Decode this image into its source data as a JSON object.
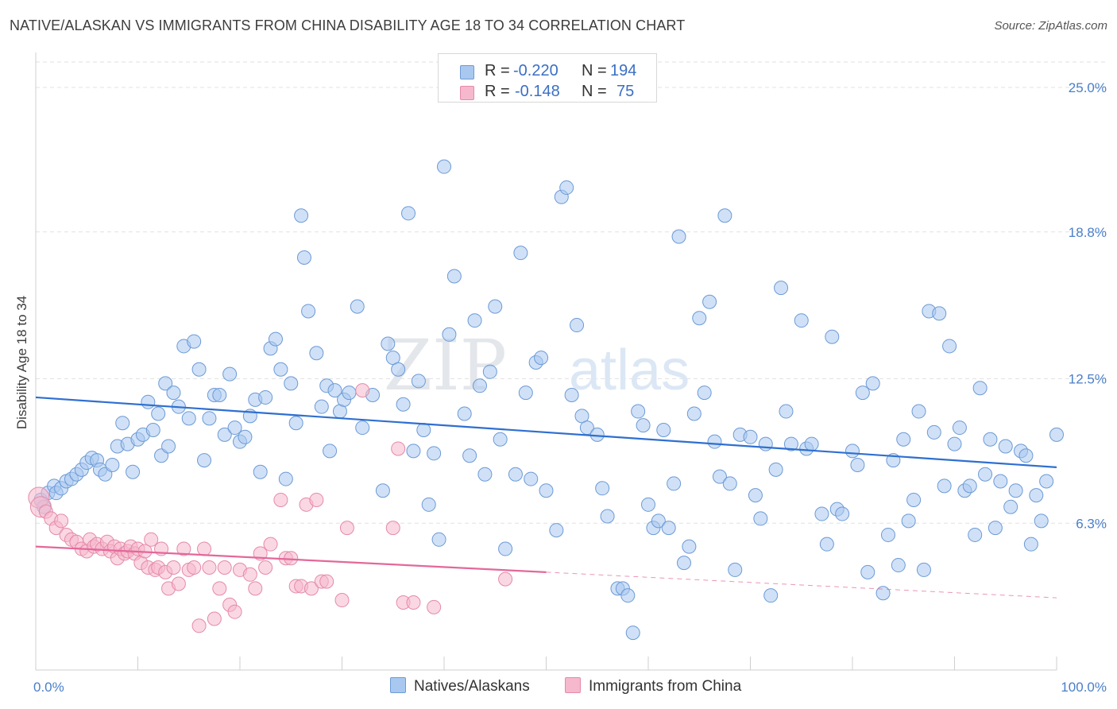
{
  "header": {
    "title": "NATIVE/ALASKAN VS IMMIGRANTS FROM CHINA DISABILITY AGE 18 TO 34 CORRELATION CHART",
    "source": "Source: ZipAtlas.com"
  },
  "watermark": {
    "part1": "ZIP",
    "part2": "atlas"
  },
  "legend": {
    "rows": [
      {
        "r_label": "R =",
        "r_value": "-0.220",
        "n_label": "N =",
        "n_value": "194"
      },
      {
        "r_label": "R =",
        "r_value": "-0.148",
        "n_label": "N =",
        "n_value": "75"
      }
    ]
  },
  "bottom_legend": {
    "natives": "Natives/Alaskans",
    "china": "Immigrants from China"
  },
  "chart_data": {
    "type": "scatter",
    "title": "NATIVE/ALASKAN VS IMMIGRANTS FROM CHINA DISABILITY AGE 18 TO 34 CORRELATION CHART",
    "ylabel": "Disability Age 18 to 34",
    "xlabel": "",
    "xlim": [
      0,
      100
    ],
    "ylim": [
      0,
      26.5
    ],
    "x_tick_labels": [
      "0.0%",
      "100.0%"
    ],
    "y_ticks": [
      {
        "value": 6.3,
        "label": "6.3%"
      },
      {
        "value": 12.5,
        "label": "12.5%"
      },
      {
        "value": 18.8,
        "label": "18.8%"
      },
      {
        "value": 25.0,
        "label": "25.0%"
      }
    ],
    "grid": true,
    "legend_position": "top-center",
    "colors": {
      "natives_fill": "#a9c8f0",
      "natives_stroke": "#6c9ad6",
      "natives_line": "#2f6fd0",
      "china_fill": "#f5b8cc",
      "china_stroke": "#e58aa8",
      "china_line": "#e3689a"
    },
    "series": [
      {
        "name": "Natives/Alaskans",
        "R": -0.22,
        "N": 194,
        "trend": {
          "x": [
            0,
            100
          ],
          "y": [
            11.7,
            8.7
          ]
        },
        "points": [
          [
            0.5,
            7.3
          ],
          [
            0.8,
            7.0
          ],
          [
            1.2,
            7.6
          ],
          [
            1.8,
            7.9
          ],
          [
            2,
            7.6
          ],
          [
            2.5,
            7.8
          ],
          [
            3,
            8.1
          ],
          [
            3.5,
            8.2
          ],
          [
            4,
            8.4
          ],
          [
            4.5,
            8.6
          ],
          [
            5,
            8.9
          ],
          [
            5.5,
            9.1
          ],
          [
            6,
            9.0
          ],
          [
            6.3,
            8.6
          ],
          [
            6.8,
            8.4
          ],
          [
            7.5,
            8.8
          ],
          [
            8,
            9.6
          ],
          [
            8.5,
            10.6
          ],
          [
            9,
            9.7
          ],
          [
            9.5,
            8.5
          ],
          [
            10,
            9.9
          ],
          [
            10.5,
            10.1
          ],
          [
            11,
            11.5
          ],
          [
            11.5,
            10.3
          ],
          [
            12,
            11.0
          ],
          [
            12.3,
            9.2
          ],
          [
            12.7,
            12.3
          ],
          [
            13,
            9.6
          ],
          [
            13.5,
            11.9
          ],
          [
            14,
            11.3
          ],
          [
            14.5,
            13.9
          ],
          [
            15,
            10.8
          ],
          [
            15.5,
            14.1
          ],
          [
            16,
            12.9
          ],
          [
            16.5,
            9.0
          ],
          [
            17,
            10.8
          ],
          [
            17.5,
            11.8
          ],
          [
            18,
            11.8
          ],
          [
            18.5,
            10.1
          ],
          [
            19,
            12.7
          ],
          [
            19.5,
            10.4
          ],
          [
            20,
            9.8
          ],
          [
            20.5,
            10.0
          ],
          [
            21,
            10.9
          ],
          [
            21.5,
            11.6
          ],
          [
            22,
            8.5
          ],
          [
            22.5,
            11.7
          ],
          [
            23,
            13.8
          ],
          [
            23.5,
            14.2
          ],
          [
            24,
            12.9
          ],
          [
            24.5,
            8.2
          ],
          [
            25,
            12.3
          ],
          [
            25.5,
            10.6
          ],
          [
            26,
            19.5
          ],
          [
            26.3,
            17.7
          ],
          [
            26.7,
            15.4
          ],
          [
            27.5,
            13.6
          ],
          [
            28,
            11.3
          ],
          [
            28.5,
            12.2
          ],
          [
            28.8,
            9.4
          ],
          [
            29.3,
            12.0
          ],
          [
            29.8,
            11.1
          ],
          [
            30.2,
            11.6
          ],
          [
            30.7,
            11.9
          ],
          [
            31.5,
            15.6
          ],
          [
            32,
            10.4
          ],
          [
            33,
            11.8
          ],
          [
            34,
            7.7
          ],
          [
            34.5,
            14.0
          ],
          [
            35,
            13.4
          ],
          [
            35.5,
            12.9
          ],
          [
            36,
            11.4
          ],
          [
            36.5,
            19.6
          ],
          [
            37,
            9.4
          ],
          [
            37.5,
            12.4
          ],
          [
            38,
            10.3
          ],
          [
            38.5,
            7.1
          ],
          [
            39,
            9.3
          ],
          [
            39.5,
            5.6
          ],
          [
            40,
            21.6
          ],
          [
            40.5,
            14.4
          ],
          [
            41,
            16.9
          ],
          [
            42,
            11.0
          ],
          [
            42.5,
            9.2
          ],
          [
            43,
            15.0
          ],
          [
            43.5,
            12.2
          ],
          [
            44,
            8.4
          ],
          [
            44.5,
            12.8
          ],
          [
            45,
            15.6
          ],
          [
            45.5,
            9.9
          ],
          [
            46,
            5.2
          ],
          [
            47,
            8.4
          ],
          [
            47.5,
            17.9
          ],
          [
            48,
            11.9
          ],
          [
            48.5,
            8.2
          ],
          [
            49,
            13.2
          ],
          [
            49.5,
            13.4
          ],
          [
            50,
            7.7
          ],
          [
            51,
            6.0
          ],
          [
            51.5,
            20.3
          ],
          [
            52,
            20.7
          ],
          [
            52.5,
            11.8
          ],
          [
            53,
            14.8
          ],
          [
            53.5,
            10.9
          ],
          [
            54,
            10.4
          ],
          [
            55,
            10.1
          ],
          [
            55.5,
            7.8
          ],
          [
            56,
            6.6
          ],
          [
            57,
            3.5
          ],
          [
            57.5,
            3.5
          ],
          [
            58,
            3.2
          ],
          [
            58.5,
            1.6
          ],
          [
            59,
            11.1
          ],
          [
            59.5,
            10.5
          ],
          [
            60,
            7.1
          ],
          [
            60.5,
            6.1
          ],
          [
            61,
            6.4
          ],
          [
            61.5,
            10.3
          ],
          [
            62,
            6.1
          ],
          [
            62.5,
            8.0
          ],
          [
            63,
            18.6
          ],
          [
            63.5,
            4.6
          ],
          [
            64,
            5.3
          ],
          [
            64.5,
            11.0
          ],
          [
            65,
            15.1
          ],
          [
            65.5,
            11.9
          ],
          [
            66,
            15.8
          ],
          [
            66.5,
            9.8
          ],
          [
            67,
            8.3
          ],
          [
            67.5,
            19.5
          ],
          [
            68,
            8.0
          ],
          [
            68.5,
            4.3
          ],
          [
            69,
            10.1
          ],
          [
            70,
            10.0
          ],
          [
            70.5,
            7.5
          ],
          [
            71,
            6.5
          ],
          [
            71.5,
            9.7
          ],
          [
            72,
            3.2
          ],
          [
            72.5,
            8.6
          ],
          [
            73,
            16.4
          ],
          [
            73.5,
            11.1
          ],
          [
            74,
            9.7
          ],
          [
            75,
            15.0
          ],
          [
            75.5,
            9.5
          ],
          [
            76,
            9.7
          ],
          [
            77,
            6.7
          ],
          [
            77.5,
            5.4
          ],
          [
            78,
            14.3
          ],
          [
            78.5,
            6.9
          ],
          [
            79,
            6.7
          ],
          [
            80,
            9.4
          ],
          [
            80.5,
            8.8
          ],
          [
            81,
            11.9
          ],
          [
            81.5,
            4.2
          ],
          [
            82,
            12.3
          ],
          [
            83,
            3.3
          ],
          [
            83.5,
            5.8
          ],
          [
            84,
            9.0
          ],
          [
            84.5,
            4.5
          ],
          [
            85,
            9.9
          ],
          [
            85.5,
            6.4
          ],
          [
            86,
            7.3
          ],
          [
            86.5,
            11.1
          ],
          [
            87,
            4.3
          ],
          [
            87.5,
            15.4
          ],
          [
            88,
            10.2
          ],
          [
            88.5,
            15.3
          ],
          [
            89,
            7.9
          ],
          [
            89.5,
            13.9
          ],
          [
            90,
            9.7
          ],
          [
            90.5,
            10.4
          ],
          [
            91,
            7.7
          ],
          [
            91.5,
            7.9
          ],
          [
            92,
            5.8
          ],
          [
            92.5,
            12.1
          ],
          [
            93,
            8.4
          ],
          [
            93.5,
            9.9
          ],
          [
            94,
            6.1
          ],
          [
            94.5,
            8.1
          ],
          [
            95,
            9.6
          ],
          [
            95.5,
            7.0
          ],
          [
            96,
            7.7
          ],
          [
            96.5,
            9.4
          ],
          [
            97,
            9.2
          ],
          [
            97.5,
            5.4
          ],
          [
            98,
            7.5
          ],
          [
            98.5,
            6.4
          ],
          [
            99,
            8.1
          ],
          [
            100,
            10.1
          ]
        ]
      },
      {
        "name": "Immigrants from China",
        "R": -0.148,
        "N": 75,
        "trend": {
          "x": [
            0,
            50
          ],
          "y": [
            5.3,
            4.2
          ],
          "dashed_extension": {
            "x": [
              50,
              100
            ],
            "y": [
              4.2,
              3.1
            ]
          }
        },
        "points": [
          [
            0.3,
            7.4
          ],
          [
            0.5,
            7.0
          ],
          [
            1,
            6.8
          ],
          [
            1.5,
            6.5
          ],
          [
            2,
            6.1
          ],
          [
            2.5,
            6.4
          ],
          [
            3,
            5.8
          ],
          [
            3.5,
            5.6
          ],
          [
            4,
            5.5
          ],
          [
            4.5,
            5.2
          ],
          [
            5,
            5.1
          ],
          [
            5.3,
            5.6
          ],
          [
            5.7,
            5.3
          ],
          [
            6,
            5.4
          ],
          [
            6.5,
            5.2
          ],
          [
            7,
            5.5
          ],
          [
            7.3,
            5.1
          ],
          [
            7.7,
            5.3
          ],
          [
            8,
            4.8
          ],
          [
            8.3,
            5.2
          ],
          [
            8.7,
            5.0
          ],
          [
            9,
            5.1
          ],
          [
            9.3,
            5.3
          ],
          [
            9.7,
            5.0
          ],
          [
            10,
            5.2
          ],
          [
            10.3,
            4.6
          ],
          [
            10.7,
            5.1
          ],
          [
            11,
            4.4
          ],
          [
            11.3,
            5.6
          ],
          [
            11.7,
            4.3
          ],
          [
            12,
            4.4
          ],
          [
            12.3,
            5.2
          ],
          [
            12.7,
            4.2
          ],
          [
            13,
            3.5
          ],
          [
            13.5,
            4.4
          ],
          [
            14,
            3.7
          ],
          [
            14.5,
            5.2
          ],
          [
            15,
            4.3
          ],
          [
            15.5,
            4.4
          ],
          [
            16,
            1.9
          ],
          [
            16.5,
            5.2
          ],
          [
            17,
            4.4
          ],
          [
            17.5,
            2.2
          ],
          [
            18,
            3.5
          ],
          [
            18.5,
            4.4
          ],
          [
            19,
            2.8
          ],
          [
            19.5,
            2.5
          ],
          [
            20,
            4.3
          ],
          [
            21,
            4.1
          ],
          [
            21.5,
            3.5
          ],
          [
            22,
            5.0
          ],
          [
            22.5,
            4.4
          ],
          [
            23,
            5.4
          ],
          [
            24,
            7.3
          ],
          [
            24.5,
            4.8
          ],
          [
            25,
            4.8
          ],
          [
            25.5,
            3.6
          ],
          [
            26,
            3.6
          ],
          [
            26.5,
            7.1
          ],
          [
            27,
            3.5
          ],
          [
            27.5,
            7.3
          ],
          [
            28,
            3.8
          ],
          [
            28.5,
            3.8
          ],
          [
            30,
            3.0
          ],
          [
            30.5,
            6.1
          ],
          [
            32,
            12.0
          ],
          [
            35,
            6.1
          ],
          [
            35.5,
            9.5
          ],
          [
            36,
            2.9
          ],
          [
            37,
            2.9
          ],
          [
            39,
            2.7
          ],
          [
            46,
            3.9
          ]
        ]
      }
    ]
  }
}
